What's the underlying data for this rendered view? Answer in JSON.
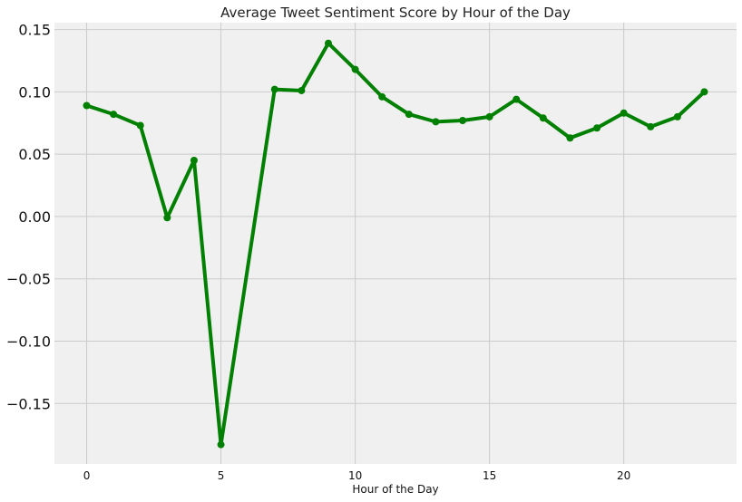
{
  "chart_data": {
    "type": "line",
    "title": "Average Tweet Sentiment Score by Hour of the Day",
    "xlabel": "Hour of the Day",
    "ylabel": "",
    "x": [
      0,
      1,
      2,
      3,
      4,
      5,
      6,
      7,
      8,
      9,
      10,
      11,
      12,
      13,
      14,
      15,
      16,
      17,
      18,
      19,
      20,
      21,
      22,
      23
    ],
    "series": [
      {
        "color": "#008000",
        "marker": "circle",
        "values": [
          0.089,
          0.082,
          0.073,
          -0.001,
          0.045,
          -0.183,
          null,
          0.102,
          0.101,
          0.139,
          0.118,
          0.096,
          0.082,
          0.076,
          0.077,
          0.08,
          0.094,
          0.079,
          0.063,
          0.071,
          0.083,
          0.072,
          0.08,
          0.1
        ]
      }
    ],
    "xlim": [
      -1.2,
      24.2
    ],
    "ylim": [
      -0.1985,
      0.1555
    ],
    "xticks": [
      0,
      5,
      10,
      15,
      20
    ],
    "xtick_labels": [
      "0",
      "5",
      "10",
      "15",
      "20"
    ],
    "yticks": [
      0.15,
      0.1,
      0.05,
      0.0,
      -0.05,
      -0.1,
      -0.15
    ],
    "ytick_labels": [
      "0.15",
      "0.10",
      "0.05",
      "0.00",
      "−0.05",
      "−0.10",
      "−0.15"
    ],
    "grid": true,
    "background": "#f0f0f0",
    "grid_color": "#cbcbcb"
  }
}
